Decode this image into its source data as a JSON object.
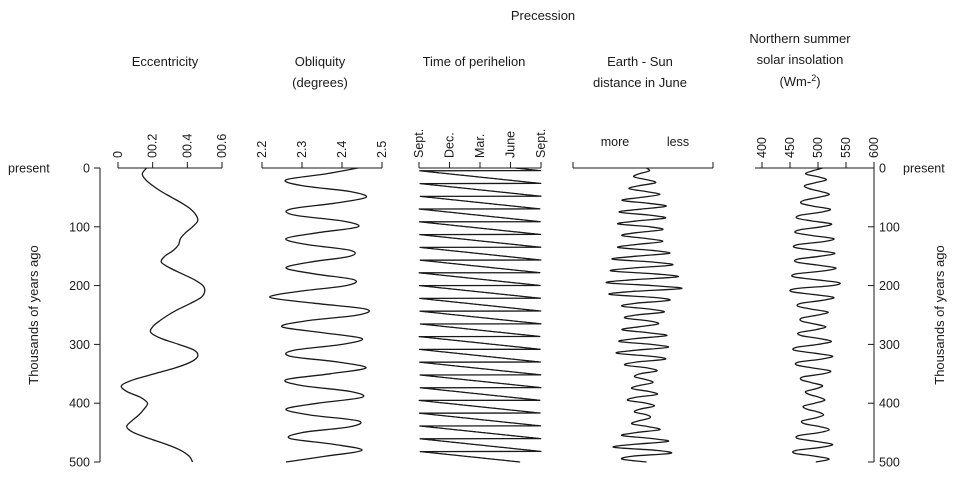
{
  "chart_data": {
    "type": "line",
    "group_title": "Precession",
    "y_axis": {
      "label": "Thousands of years ago",
      "range": [
        0,
        500
      ],
      "ticks": [
        "0",
        "100",
        "200",
        "300",
        "400",
        "500"
      ],
      "top_label": "present"
    },
    "panels": [
      {
        "title": "Eccentricity",
        "range": [
          0,
          0.6
        ],
        "ticks": [
          "0",
          "00.2",
          "00.4",
          "00.6"
        ],
        "tick_values": [
          0,
          0.2,
          0.4,
          0.6
        ],
        "t": [
          0,
          10,
          20,
          30,
          40,
          50,
          60,
          70,
          80,
          90,
          100,
          110,
          120,
          130,
          140,
          150,
          160,
          170,
          180,
          190,
          200,
          210,
          220,
          230,
          240,
          250,
          260,
          270,
          280,
          290,
          300,
          310,
          320,
          330,
          340,
          350,
          360,
          370,
          380,
          390,
          400,
          410,
          420,
          430,
          440,
          450,
          460,
          470,
          480,
          490,
          500
        ],
        "values": [
          0.165,
          0.14,
          0.16,
          0.2,
          0.25,
          0.31,
          0.37,
          0.42,
          0.45,
          0.46,
          0.43,
          0.39,
          0.36,
          0.35,
          0.32,
          0.27,
          0.25,
          0.3,
          0.37,
          0.44,
          0.49,
          0.5,
          0.48,
          0.42,
          0.35,
          0.29,
          0.24,
          0.2,
          0.19,
          0.25,
          0.35,
          0.44,
          0.46,
          0.42,
          0.33,
          0.21,
          0.09,
          0.02,
          0.05,
          0.13,
          0.17,
          0.15,
          0.12,
          0.08,
          0.05,
          0.09,
          0.18,
          0.28,
          0.36,
          0.41,
          0.43
        ]
      },
      {
        "title": "Obliquity (degrees)",
        "range": [
          2.2,
          2.5
        ],
        "ticks": [
          "2.2",
          "2.3",
          "2.4",
          "2.5"
        ],
        "tick_values": [
          2.2,
          2.3,
          2.4,
          2.5
        ],
        "t": [
          0,
          10,
          20,
          30,
          40,
          50,
          60,
          70,
          80,
          90,
          100,
          110,
          120,
          130,
          140,
          150,
          160,
          170,
          180,
          190,
          200,
          210,
          220,
          230,
          240,
          250,
          260,
          270,
          280,
          290,
          300,
          310,
          320,
          330,
          340,
          350,
          360,
          370,
          380,
          390,
          400,
          410,
          420,
          430,
          440,
          450,
          460,
          470,
          480,
          490,
          500
        ],
        "values": [
          2.44,
          2.36,
          2.26,
          2.3,
          2.42,
          2.46,
          2.38,
          2.27,
          2.28,
          2.4,
          2.44,
          2.34,
          2.26,
          2.31,
          2.42,
          2.42,
          2.32,
          2.26,
          2.33,
          2.43,
          2.41,
          2.29,
          2.22,
          2.33,
          2.46,
          2.44,
          2.31,
          2.25,
          2.35,
          2.45,
          2.4,
          2.28,
          2.27,
          2.39,
          2.46,
          2.37,
          2.26,
          2.3,
          2.42,
          2.45,
          2.34,
          2.26,
          2.32,
          2.44,
          2.42,
          2.3,
          2.27,
          2.38,
          2.45,
          2.36,
          2.26
        ]
      },
      {
        "title": "Time of perihelion",
        "range": [
          0,
          4
        ],
        "ticks": [
          "Sept.",
          "Dec.",
          "Mar.",
          "June",
          "Sept."
        ],
        "tick_values": [
          0,
          1,
          2,
          3,
          4
        ],
        "cycle_kyr": 21.7,
        "start": 3.15
      },
      {
        "title": "Earth - Sun distance in June",
        "range": [
          -1,
          1
        ],
        "ticks": [
          "more",
          "less"
        ],
        "tick_values": [
          -0.4,
          0.5
        ],
        "t": [
          0,
          5,
          10,
          15,
          20,
          25,
          30,
          35,
          40,
          45,
          50,
          55,
          60,
          65,
          70,
          75,
          80,
          85,
          90,
          95,
          100,
          105,
          110,
          115,
          120,
          125,
          130,
          135,
          140,
          145,
          150,
          155,
          160,
          165,
          170,
          175,
          180,
          185,
          190,
          195,
          200,
          205,
          210,
          215,
          220,
          225,
          230,
          235,
          240,
          245,
          250,
          255,
          260,
          265,
          270,
          275,
          280,
          285,
          290,
          295,
          300,
          305,
          310,
          315,
          320,
          325,
          330,
          335,
          340,
          345,
          350,
          355,
          360,
          365,
          370,
          375,
          380,
          385,
          390,
          395,
          400,
          405,
          410,
          415,
          420,
          425,
          430,
          435,
          440,
          445,
          450,
          455,
          460,
          465,
          470,
          475,
          480,
          485,
          490,
          495,
          500
        ],
        "values": [
          0.05,
          0.09,
          -0.06,
          -0.13,
          0.06,
          0.18,
          -0.05,
          -0.2,
          0.04,
          0.24,
          -0.03,
          -0.3,
          0.08,
          0.33,
          -0.04,
          -0.34,
          0.08,
          0.32,
          -0.08,
          -0.36,
          0.1,
          0.28,
          -0.1,
          -0.3,
          0.06,
          0.28,
          -0.08,
          -0.36,
          0.12,
          0.38,
          -0.1,
          -0.44,
          0.15,
          0.42,
          -0.14,
          -0.46,
          0.16,
          0.5,
          -0.14,
          -0.52,
          0.14,
          0.55,
          -0.16,
          -0.48,
          0.15,
          0.38,
          -0.1,
          -0.3,
          0.1,
          0.3,
          -0.1,
          -0.26,
          0.08,
          0.22,
          -0.06,
          -0.3,
          0.06,
          0.34,
          -0.1,
          -0.34,
          0.12,
          0.36,
          -0.12,
          -0.38,
          0.1,
          0.32,
          -0.09,
          -0.26,
          0.06,
          0.2,
          -0.04,
          -0.12,
          0.05,
          0.14,
          -0.06,
          -0.16,
          0.08,
          0.2,
          -0.1,
          -0.22,
          0.05,
          0.16,
          -0.04,
          -0.12,
          0.06,
          0.1,
          -0.06,
          -0.16,
          0.08,
          0.24,
          -0.1,
          -0.3,
          0.12,
          0.36,
          -0.14,
          -0.42,
          0.16,
          0.4,
          -0.14,
          -0.3,
          0.05
        ]
      },
      {
        "title": "Northern summer solar insolation",
        "units": "(Wm-2)",
        "range": [
          400,
          600
        ],
        "ticks": [
          "400",
          "450",
          "500",
          "550",
          "600"
        ],
        "tick_values": [
          400,
          450,
          500,
          550,
          600
        ],
        "t": [
          0,
          5,
          10,
          15,
          20,
          25,
          30,
          35,
          40,
          45,
          50,
          55,
          60,
          65,
          70,
          75,
          80,
          85,
          90,
          95,
          100,
          105,
          110,
          115,
          120,
          125,
          130,
          135,
          140,
          145,
          150,
          155,
          160,
          165,
          170,
          175,
          180,
          185,
          190,
          195,
          200,
          205,
          210,
          215,
          220,
          225,
          230,
          235,
          240,
          245,
          250,
          255,
          260,
          265,
          270,
          275,
          280,
          285,
          290,
          295,
          300,
          305,
          310,
          315,
          320,
          325,
          330,
          335,
          340,
          345,
          350,
          355,
          360,
          365,
          370,
          375,
          380,
          385,
          390,
          395,
          400,
          405,
          410,
          415,
          420,
          425,
          430,
          435,
          440,
          445,
          450,
          455,
          460,
          465,
          470,
          475,
          480,
          485,
          490,
          495,
          500
        ],
        "values": [
          508,
          490,
          478,
          500,
          515,
          495,
          476,
          484,
          505,
          520,
          500,
          475,
          470,
          492,
          522,
          506,
          470,
          462,
          488,
          524,
          506,
          468,
          460,
          490,
          528,
          512,
          466,
          458,
          494,
          530,
          504,
          464,
          462,
          498,
          532,
          510,
          462,
          456,
          496,
          538,
          525,
          462,
          452,
          490,
          528,
          508,
          470,
          464,
          488,
          518,
          500,
          472,
          470,
          492,
          514,
          496,
          466,
          470,
          502,
          524,
          500,
          462,
          458,
          494,
          526,
          506,
          466,
          462,
          490,
          522,
          510,
          474,
          470,
          488,
          508,
          498,
          478,
          484,
          502,
          512,
          494,
          474,
          480,
          500,
          510,
          496,
          472,
          476,
          504,
          520,
          502,
          466,
          464,
          496,
          526,
          506,
          462,
          458,
          494,
          520,
          496
        ]
      }
    ]
  }
}
